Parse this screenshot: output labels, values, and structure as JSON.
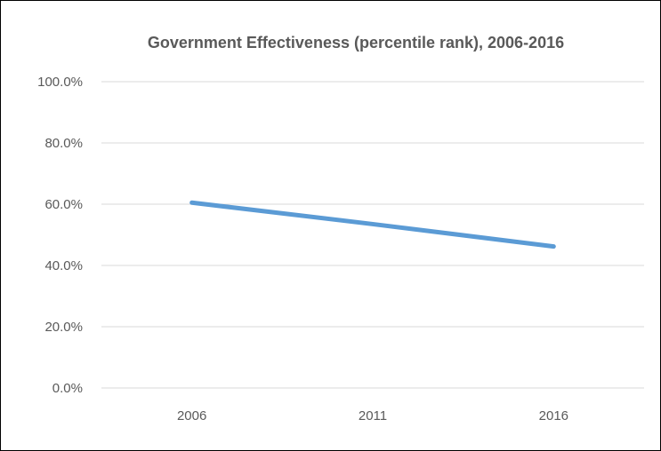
{
  "chart_data": {
    "type": "line",
    "title": "Government Effectiveness  (percentile rank), 2006-2016",
    "xlabel": "",
    "ylabel": "",
    "categories": [
      "2006",
      "2011",
      "2016"
    ],
    "series": [
      {
        "values": [
          60.5,
          53.5,
          46.2
        ],
        "color": "#5B9BD5"
      }
    ],
    "ylim": [
      0,
      100
    ],
    "ytick_values": [
      0,
      20,
      40,
      60,
      80,
      100
    ],
    "ytick_labels": [
      "0.0%",
      "20.0%",
      "40.0%",
      "60.0%",
      "80.0%",
      "100.0%"
    ],
    "grid": true,
    "legend": "none",
    "gridline_color": "#D9D9D9",
    "text_color": "#595959",
    "border_color": "#000000"
  }
}
